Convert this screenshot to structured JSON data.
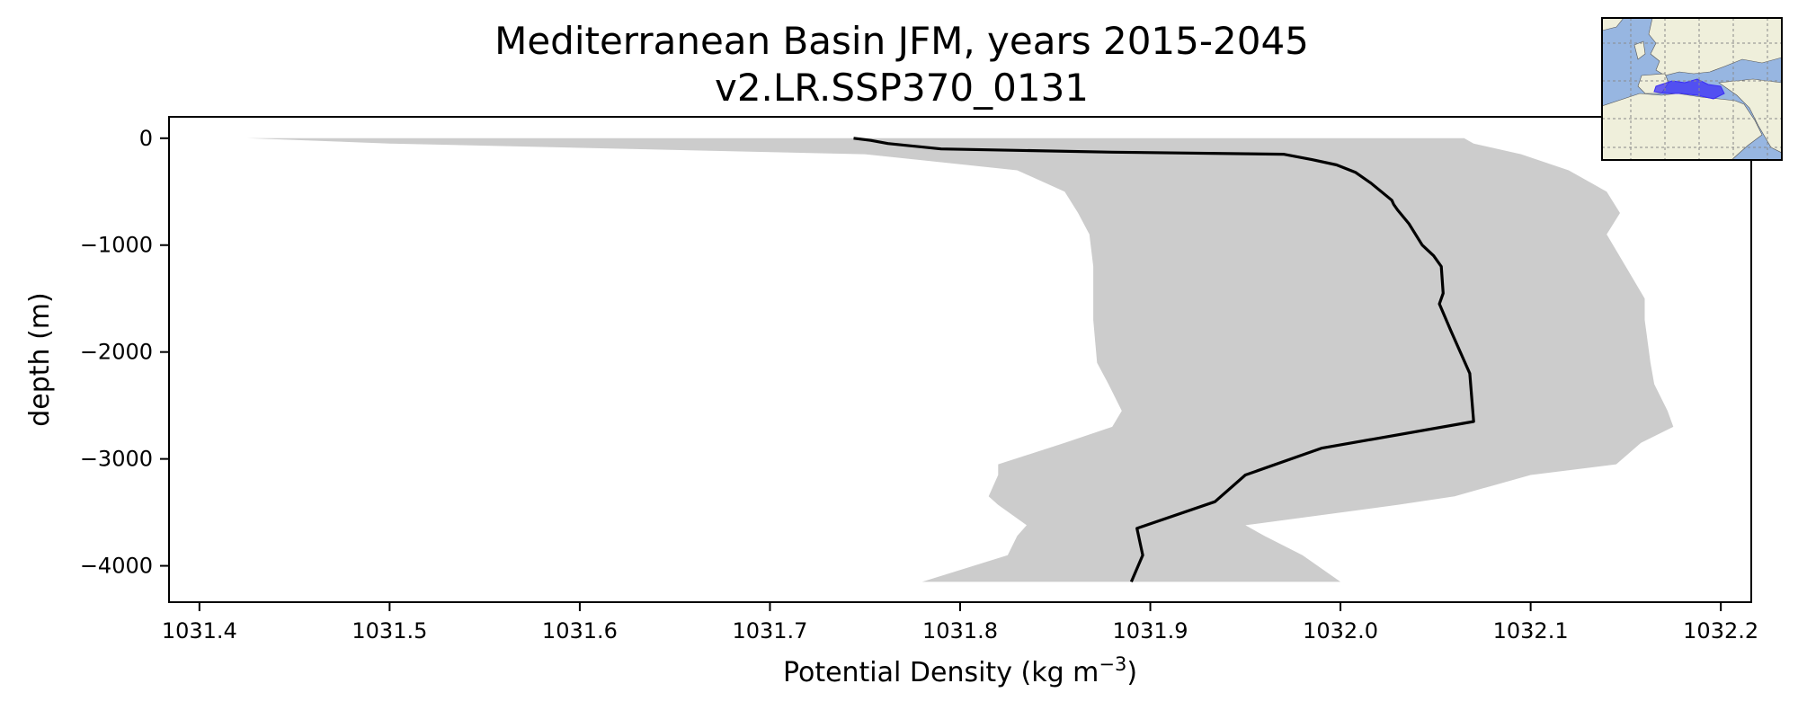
{
  "chart_data": {
    "type": "line",
    "title": "Mediterranean Basin JFM, years 2015-2045",
    "subtitle": "v2.LR.SSP370_0131",
    "xlabel": "Potential Density (kg m",
    "xlabel_sup": "−3",
    "xlabel_end": ")",
    "ylabel": "depth (m)",
    "xlim": [
      1031.384,
      1032.216
    ],
    "ylim": [
      -4340,
      200
    ],
    "xticks": [
      1031.4,
      1031.5,
      1031.6,
      1031.7,
      1031.8,
      1031.9,
      1032.0,
      1032.1,
      1032.2
    ],
    "xtick_labels": [
      "1031.4",
      "1031.5",
      "1031.6",
      "1031.7",
      "1031.8",
      "1031.9",
      "1032.0",
      "1032.1",
      "1032.2"
    ],
    "yticks": [
      0,
      -1000,
      -2000,
      -3000,
      -4000
    ],
    "ytick_labels": [
      "0",
      "−1000",
      "−2000",
      "−3000",
      "−4000"
    ],
    "grid": false,
    "series": [
      {
        "role": "mean",
        "color": "#000000",
        "x": [
          1031.744,
          1031.753,
          1031.762,
          1031.79,
          1031.88,
          1031.97,
          1031.985,
          1031.998,
          1032.008,
          1032.016,
          1032.027,
          1032.028,
          1032.03,
          1032.036,
          1032.043,
          1032.049,
          1032.053,
          1032.054,
          1032.052,
          1032.058,
          1032.068,
          1032.07,
          1031.99,
          1031.95,
          1031.934,
          1031.893,
          1031.896,
          1031.89
        ],
        "y": [
          0,
          -20,
          -50,
          -100,
          -130,
          -150,
          -200,
          -250,
          -320,
          -420,
          -580,
          -620,
          -670,
          -800,
          -1000,
          -1100,
          -1200,
          -1450,
          -1550,
          -1800,
          -2200,
          -2650,
          -2900,
          -3150,
          -3400,
          -3650,
          -3900,
          -4150
        ]
      }
    ],
    "band": {
      "color": "#cccccc",
      "y": [
        0,
        -50,
        -150,
        -300,
        -500,
        -700,
        -900,
        -1200,
        -1500,
        -1700,
        -2100,
        -2300,
        -2550,
        -2700,
        -2850,
        -3050,
        -3150,
        -3350,
        -3430,
        -3620,
        -3720,
        -3900,
        -4150
      ],
      "x_low": [
        1031.425,
        1031.5,
        1031.75,
        1031.83,
        1031.855,
        1031.862,
        1031.868,
        1031.87,
        1031.87,
        1031.87,
        1031.872,
        1031.878,
        1031.885,
        1031.88,
        1031.855,
        1031.82,
        1031.82,
        1031.815,
        1031.82,
        1031.835,
        1031.83,
        1031.825,
        1031.78
      ],
      "x_high": [
        1032.065,
        1032.07,
        1032.095,
        1032.12,
        1032.14,
        1032.147,
        1032.14,
        1032.15,
        1032.16,
        1032.16,
        1032.163,
        1032.165,
        1032.172,
        1032.175,
        1032.158,
        1032.145,
        1032.1,
        1032.06,
        1032.03,
        1031.95,
        1031.96,
        1031.98,
        1032.0
      ]
    }
  },
  "inset_map": {
    "ocean_color": "#97b6e1",
    "land_color": "#efefdb",
    "region_color": "#3b2ef5",
    "grid_color": "#8a8a8a"
  }
}
